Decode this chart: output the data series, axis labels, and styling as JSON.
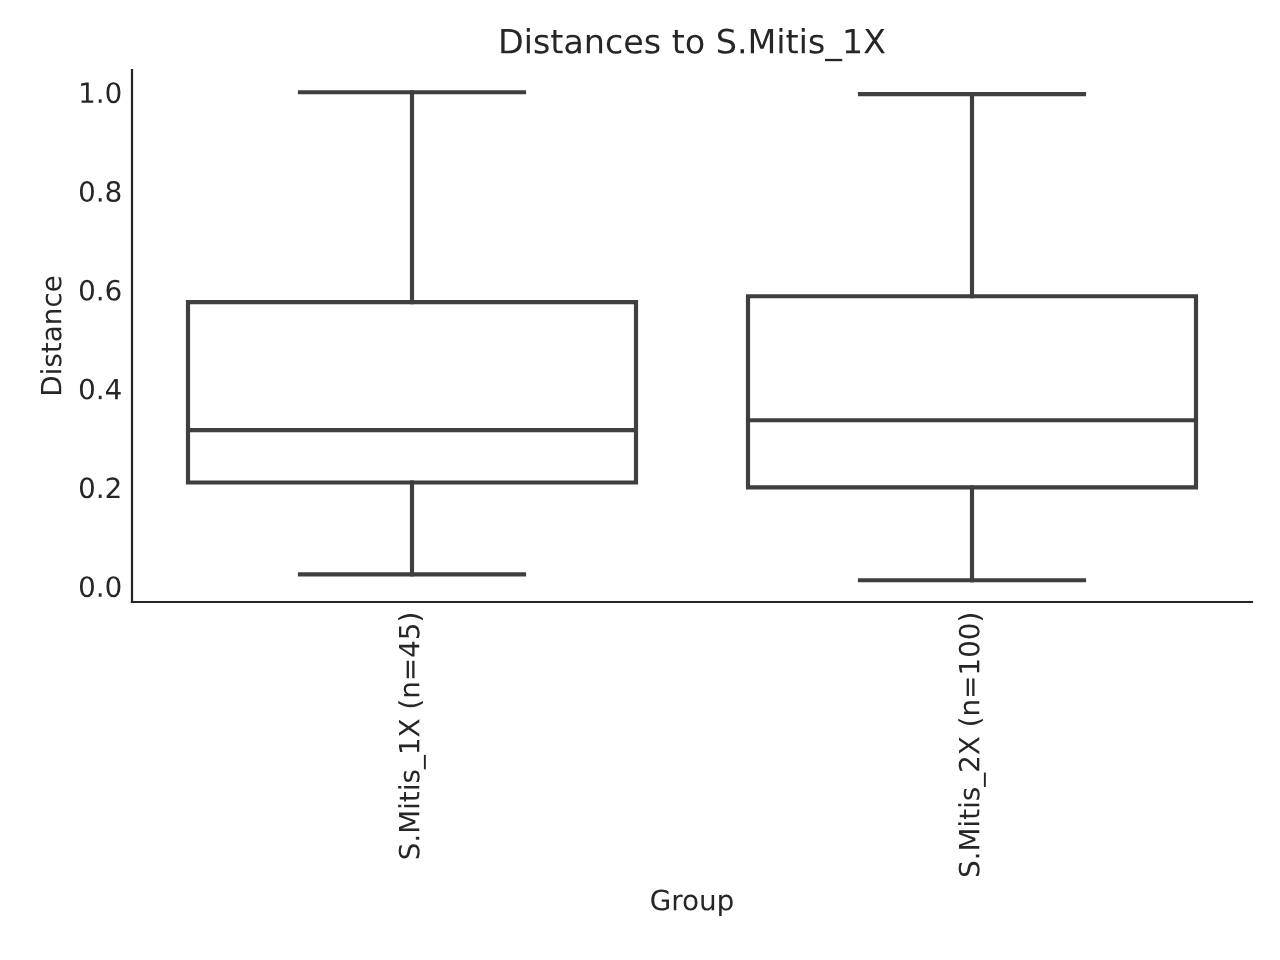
{
  "chart_data": {
    "type": "box",
    "title": "Distances to S.Mitis_1X",
    "xlabel": "Group",
    "ylabel": "Distance",
    "categories": [
      "S.Mitis_1X (n=45)",
      "S.Mitis_2X (n=100)"
    ],
    "boxes": [
      {
        "low": 0.024,
        "q1": 0.21,
        "median": 0.316,
        "q3": 0.575,
        "high": 1.0
      },
      {
        "low": 0.012,
        "q1": 0.2,
        "median": 0.336,
        "q3": 0.587,
        "high": 0.996
      }
    ],
    "color": "#3f3f3f",
    "ylim": [
      -0.032,
      1.045
    ],
    "yticks": [
      {
        "value": 0,
        "label": "0.0"
      },
      {
        "value": 0.2,
        "label": "0.2"
      },
      {
        "value": 0.4,
        "label": "0.4"
      },
      {
        "value": 0.6,
        "label": "0.6"
      },
      {
        "value": 0.8,
        "label": "0.8"
      },
      {
        "value": 1.0,
        "label": "1.0"
      }
    ],
    "grid": false,
    "legend": false
  }
}
